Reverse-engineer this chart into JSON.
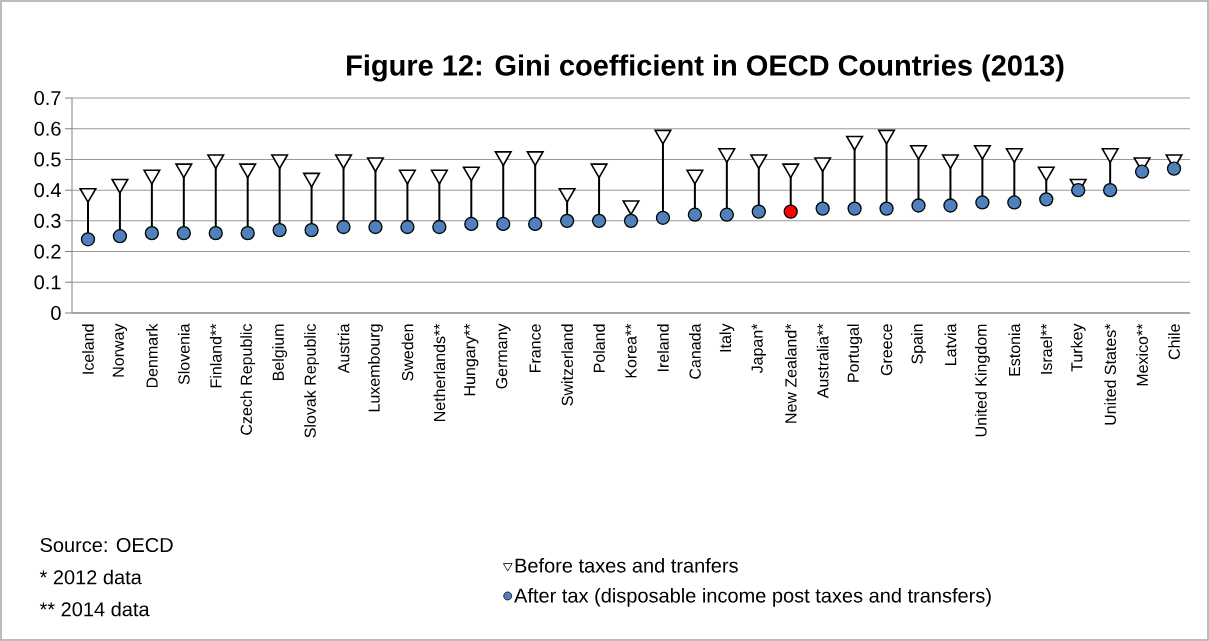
{
  "chart_data": {
    "type": "scatter",
    "title": "Figure 12: Gini coefficient in OECD Countries (2013)",
    "categories": [
      "Iceland",
      "Norway",
      "Denmark",
      "Slovenia",
      "Finland**",
      "Czech Republic",
      "Belgium",
      "Slovak Republic",
      "Austria",
      "Luxembourg",
      "Sweden",
      "Netherlands**",
      "Hungary**",
      "Germany",
      "France",
      "Switzerland",
      "Poland",
      "Korea**",
      "Ireland",
      "Canada",
      "Italy",
      "Japan*",
      "New Zealand*",
      "Australia**",
      "Portugal",
      "Greece",
      "Spain",
      "Latvia",
      "United Kingdom",
      "Estonia",
      "Israel**",
      "Turkey",
      "United States*",
      "Mexico**",
      "Chile"
    ],
    "series": [
      {
        "name": "Before taxes and tranfers",
        "marker": "triangle",
        "color": "#ffffff",
        "values": [
          0.39,
          0.42,
          0.45,
          0.47,
          0.5,
          0.47,
          0.5,
          0.44,
          0.5,
          0.49,
          0.45,
          0.45,
          0.46,
          0.51,
          0.51,
          0.39,
          0.47,
          0.35,
          0.58,
          0.45,
          0.52,
          0.5,
          0.47,
          0.49,
          0.56,
          0.58,
          0.53,
          0.5,
          0.53,
          0.52,
          0.46,
          0.42,
          0.52,
          0.49,
          0.5
        ]
      },
      {
        "name": "After tax (disposable income post taxes and transfers)",
        "marker": "circle",
        "color": "#4f81bd",
        "colors": [
          "#4f81bd",
          "#4f81bd",
          "#4f81bd",
          "#4f81bd",
          "#4f81bd",
          "#4f81bd",
          "#4f81bd",
          "#4f81bd",
          "#4f81bd",
          "#4f81bd",
          "#4f81bd",
          "#4f81bd",
          "#4f81bd",
          "#4f81bd",
          "#4f81bd",
          "#4f81bd",
          "#4f81bd",
          "#4f81bd",
          "#4f81bd",
          "#4f81bd",
          "#4f81bd",
          "#4f81bd",
          "#ff0000",
          "#4f81bd",
          "#4f81bd",
          "#4f81bd",
          "#4f81bd",
          "#4f81bd",
          "#4f81bd",
          "#4f81bd",
          "#4f81bd",
          "#4f81bd",
          "#4f81bd",
          "#4f81bd",
          "#4f81bd"
        ],
        "values": [
          0.24,
          0.25,
          0.26,
          0.26,
          0.26,
          0.26,
          0.27,
          0.27,
          0.28,
          0.28,
          0.28,
          0.28,
          0.29,
          0.29,
          0.29,
          0.3,
          0.3,
          0.3,
          0.31,
          0.32,
          0.32,
          0.33,
          0.33,
          0.34,
          0.34,
          0.34,
          0.35,
          0.35,
          0.36,
          0.36,
          0.37,
          0.4,
          0.4,
          0.46,
          0.47
        ]
      }
    ],
    "ylim": [
      0,
      0.7
    ],
    "yticks": [
      0,
      0.1,
      0.2,
      0.3,
      0.4,
      0.5,
      0.6,
      0.7
    ],
    "grid": "y",
    "legend": "bottom",
    "annotations": [
      "Source: OECD",
      "* 2012 data",
      "** 2014 data"
    ]
  }
}
